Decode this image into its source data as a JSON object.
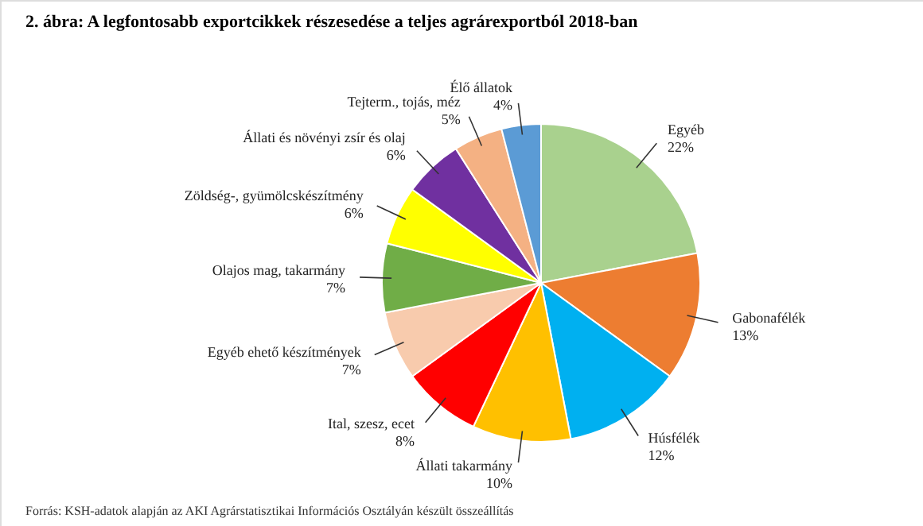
{
  "chart_data": {
    "type": "pie",
    "title": "2. ábra:   A legfontosabb exportcikkek részesedése a teljes agrárexportból 2018-ban",
    "categories": [
      "Egyéb",
      "Gabonafélék",
      "Húsfélék",
      "Állati takarmány",
      "Ital, szesz, ecet",
      "Egyéb ehető készítmények",
      "Olajos mag, takarmány",
      "Zöldség-, gyümölcskészítmény",
      "Állati és növényi zsír és olaj",
      "Tejterm., tojás, méz",
      "Élő állatok"
    ],
    "values": [
      22,
      13,
      12,
      10,
      8,
      7,
      7,
      6,
      6,
      5,
      4
    ],
    "value_labels": [
      "22%",
      "13%",
      "12%",
      "10%",
      "8%",
      "7%",
      "7%",
      "6%",
      "6%",
      "5%",
      "4%"
    ],
    "colors": [
      "#a9d18e",
      "#ed7d31",
      "#00b0f0",
      "#ffc000",
      "#ff0000",
      "#f8cbad",
      "#70ad47",
      "#ffff00",
      "#7030a0",
      "#f4b183",
      "#5b9bd5"
    ],
    "annotations": [
      "Forrás: KSH-adatok alapján az AKI Agrárstatisztikai Információs Osztályán készült összeállítás"
    ]
  }
}
